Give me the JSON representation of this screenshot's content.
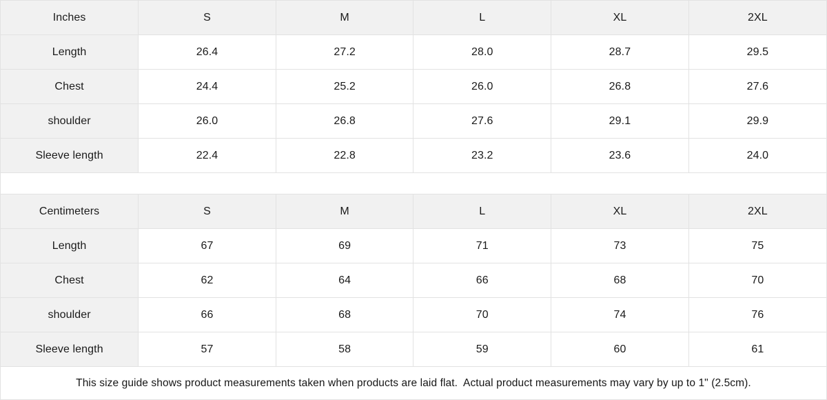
{
  "colors": {
    "header_bg": "#f1f1f1",
    "border": "#e2e2e2",
    "text": "#1a1a1a"
  },
  "tables": [
    {
      "unit_label": "Inches",
      "columns": [
        "S",
        "M",
        "L",
        "XL",
        "2XL"
      ],
      "rows": [
        {
          "label": "Length",
          "values": [
            "26.4",
            "27.2",
            "28.0",
            "28.7",
            "29.5"
          ]
        },
        {
          "label": "Chest",
          "values": [
            "24.4",
            "25.2",
            "26.0",
            "26.8",
            "27.6"
          ]
        },
        {
          "label": "shoulder",
          "values": [
            "26.0",
            "26.8",
            "27.6",
            "29.1",
            "29.9"
          ]
        },
        {
          "label": "Sleeve length",
          "values": [
            "22.4",
            "22.8",
            "23.2",
            "23.6",
            "24.0"
          ]
        }
      ]
    },
    {
      "unit_label": "Centimeters",
      "columns": [
        "S",
        "M",
        "L",
        "XL",
        "2XL"
      ],
      "rows": [
        {
          "label": "Length",
          "values": [
            "67",
            "69",
            "71",
            "73",
            "75"
          ]
        },
        {
          "label": "Chest",
          "values": [
            "62",
            "64",
            "66",
            "68",
            "70"
          ]
        },
        {
          "label": "shoulder",
          "values": [
            "66",
            "68",
            "70",
            "74",
            "76"
          ]
        },
        {
          "label": "Sleeve length",
          "values": [
            "57",
            "58",
            "59",
            "60",
            "61"
          ]
        }
      ]
    }
  ],
  "footer": {
    "note": "This size guide shows product measurements taken when products are laid flat.  Actual product measurements may vary by up to 1\" (2.5cm)."
  }
}
